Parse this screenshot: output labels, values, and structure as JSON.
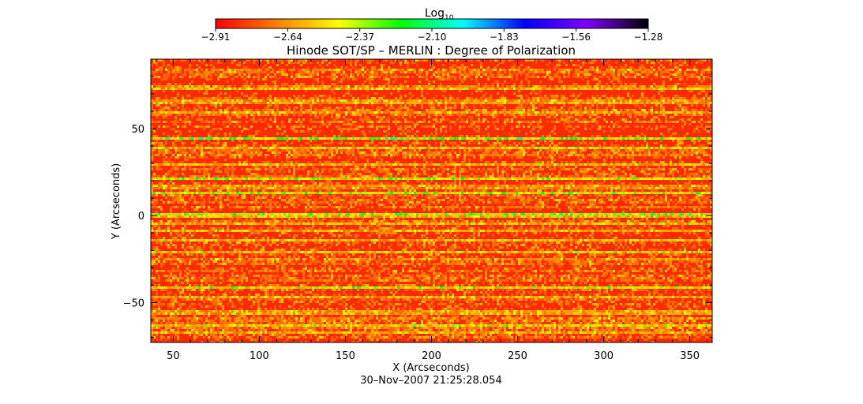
{
  "chart_data": {
    "type": "heatmap",
    "title": "Hinode SOT/SP – MERLIN : Degree of Polarization",
    "xlabel": "X (Arcseconds)",
    "ylabel": "Y (Arcseconds)",
    "timestamp": "30–Nov–2007 21:25:28.054",
    "colorbar": {
      "label_base": "Log",
      "label_sub": "10",
      "range": [
        -2.91,
        -1.28
      ],
      "tick_labels": [
        "−2.91",
        "−2.64",
        "−2.37",
        "−2.10",
        "−1.83",
        "−1.56",
        "−1.28"
      ],
      "colors": [
        "#ff0000",
        "#ff8000",
        "#ffff00",
        "#00ff00",
        "#00ffff",
        "#0000ff",
        "#8000ff",
        "#000000"
      ]
    },
    "xlim": [
      37,
      363
    ],
    "ylim": [
      -73,
      90
    ],
    "xticks": [
      50,
      100,
      150,
      200,
      250,
      300,
      350
    ],
    "xtick_labels": [
      "50",
      "100",
      "150",
      "200",
      "250",
      "300",
      "350"
    ],
    "yticks": [
      -50,
      0,
      50
    ],
    "ytick_labels": [
      "−50",
      "0",
      "50"
    ],
    "band_rows_y": [
      85,
      74,
      66,
      60,
      45,
      40,
      35,
      30,
      22,
      17,
      14,
      10,
      1,
      -4,
      -8,
      -14,
      -20,
      -25,
      -36,
      -41,
      -46,
      -55,
      -59,
      -63,
      -67
    ],
    "band_strength": [
      0.35,
      0.55,
      0.6,
      0.35,
      0.65,
      0.55,
      0.45,
      0.35,
      0.55,
      0.45,
      0.7,
      0.35,
      0.85,
      0.45,
      0.4,
      0.45,
      0.55,
      0.35,
      0.35,
      0.6,
      0.45,
      0.5,
      0.45,
      0.7,
      0.4
    ],
    "z_range": [
      -2.91,
      -2.05
    ]
  }
}
